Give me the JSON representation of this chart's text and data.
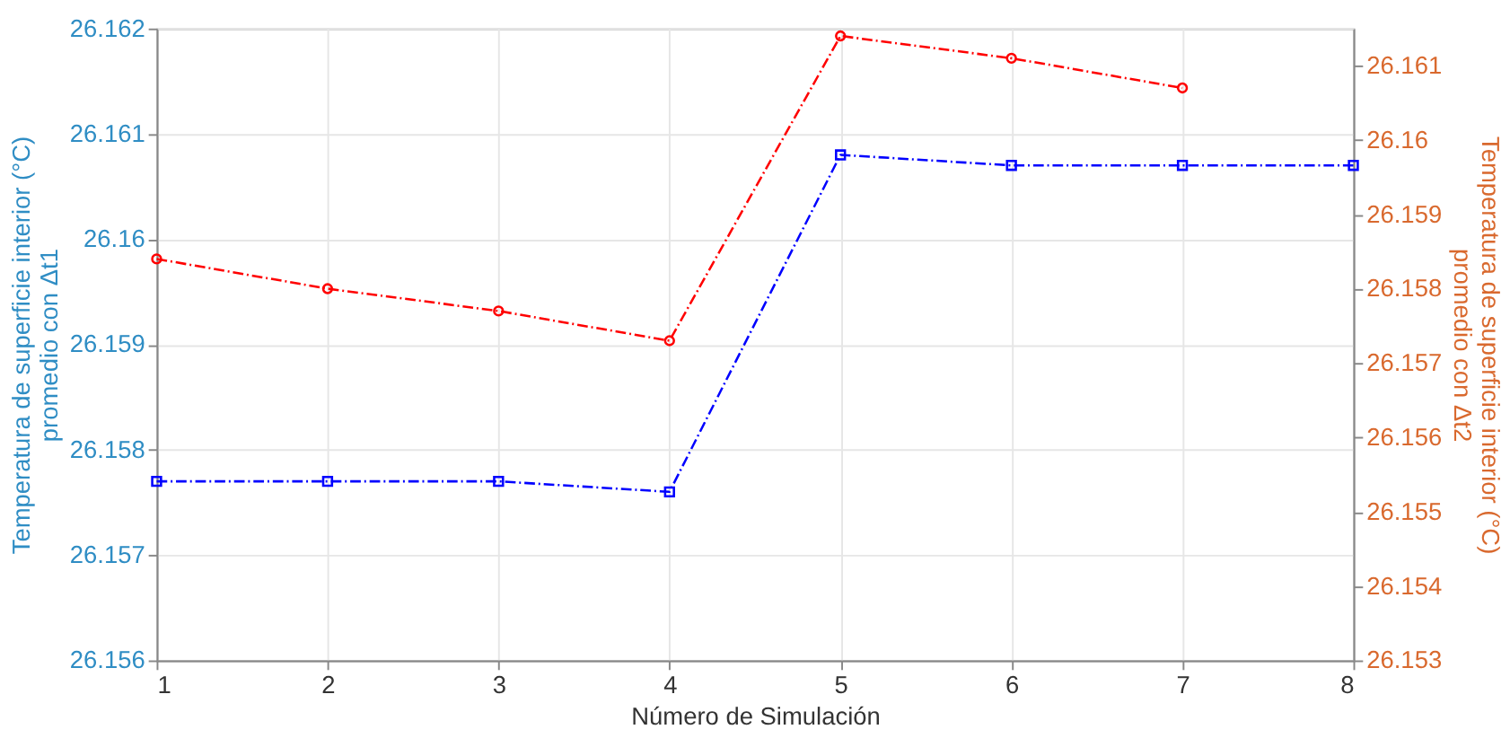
{
  "chart_data": {
    "type": "line",
    "xlabel": "Número de Simulación",
    "ylabel": "Temperatura de superficie interior (°C)\npromedio con Δt1",
    "y2label": "Temperatura de superficie interior (°C)\npromedio con Δt2",
    "x": [
      1,
      2,
      3,
      4,
      5,
      6,
      7,
      8
    ],
    "xlim": [
      1,
      8
    ],
    "xticks": [
      1,
      2,
      3,
      4,
      5,
      6,
      7,
      8
    ],
    "ylim": [
      26.156,
      26.162
    ],
    "yticks": [
      26.156,
      26.157,
      26.158,
      26.159,
      26.16,
      26.161,
      26.162
    ],
    "y2lim": [
      26.153,
      26.1615
    ],
    "y2ticks": [
      26.153,
      26.154,
      26.155,
      26.156,
      26.157,
      26.158,
      26.159,
      26.16,
      26.161
    ],
    "grid": true,
    "line_style": "dashed",
    "series": [
      {
        "color": "#0000ff",
        "marker": "square",
        "values": [
          26.1577,
          26.1577,
          26.1577,
          26.1576,
          26.1608,
          26.1607,
          26.1607,
          26.1607
        ]
      },
      {
        "color": "#ff0000",
        "marker": "circle",
        "axis": "y2",
        "values": [
          26.1584,
          26.158,
          26.1577,
          26.1573,
          26.1614,
          26.1611,
          26.1607,
          null
        ]
      }
    ]
  }
}
